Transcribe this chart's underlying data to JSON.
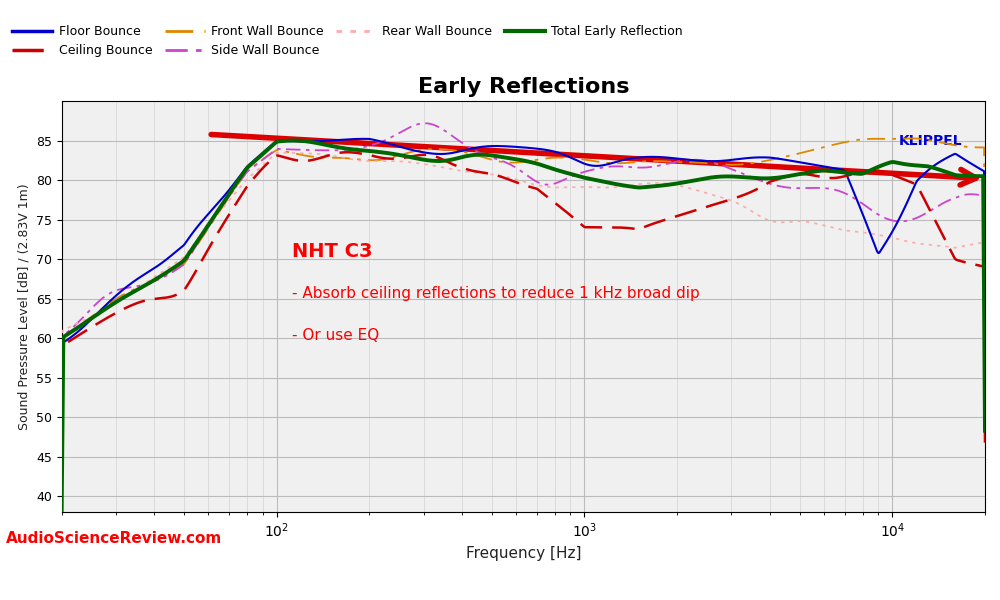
{
  "title": "Early Reflections",
  "xlabel": "Frequency [Hz]",
  "ylabel": "Sound Pressure Level [dB] / (2.83V 1m)",
  "xlim": [
    20,
    20000
  ],
  "ylim": [
    38,
    90
  ],
  "yticks": [
    40,
    45,
    50,
    55,
    60,
    65,
    70,
    75,
    80,
    85
  ],
  "background_color": "#f0f0f0",
  "watermark": "AudioScienceReview.com",
  "klippel_label": "KLIPPEL",
  "annotation_title": "NHT C3",
  "annotation_lines": [
    "- Absorb ceiling reflections to reduce 1 kHz broad dip",
    "- Or use EQ"
  ],
  "series_colors": {
    "floor_bounce": "#0000cc",
    "ceiling_bounce": "#cc0000",
    "front_wall": "#dd8800",
    "side_wall": "#cc44cc",
    "rear_wall": "#ffaaaa",
    "total": "#006600"
  },
  "trend_arrow": {
    "x_start": 60,
    "x_end": 20000,
    "y_start": 85.8,
    "y_end": 80.2,
    "color": "#dd0000",
    "linewidth": 4
  },
  "legend_order": [
    "floor_bounce",
    "ceiling_bounce",
    "front_wall",
    "side_wall",
    "rear_wall",
    "total"
  ],
  "legend_labels": [
    "Floor Bounce",
    "Ceiling Bounce",
    "Front Wall Bounce",
    "Side Wall Bounce",
    "Rear Wall Bounce",
    "Total Early Reflection"
  ]
}
